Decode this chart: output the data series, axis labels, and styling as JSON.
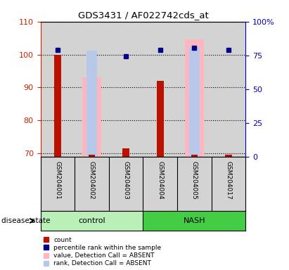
{
  "title": "GDS3431 / AF022742cds_at",
  "samples": [
    "GSM204001",
    "GSM204002",
    "GSM204003",
    "GSM204004",
    "GSM204005",
    "GSM204017"
  ],
  "ylim_left": [
    69,
    110
  ],
  "ylim_right": [
    0,
    100
  ],
  "yticks_left": [
    70,
    80,
    90,
    100,
    110
  ],
  "yticks_right": [
    0,
    25,
    50,
    75,
    100
  ],
  "left_axis_color": "#cc2200",
  "right_axis_color": "#0000bb",
  "count_values": [
    100.0,
    69.5,
    71.5,
    92.0,
    69.5,
    69.5
  ],
  "count_color": "#bb1100",
  "percentile_values": [
    101.5,
    null,
    99.5,
    101.3,
    102.0,
    101.5
  ],
  "percentile_color": "#000088",
  "value_absent_values": [
    null,
    93.0,
    null,
    null,
    104.5,
    null
  ],
  "value_absent_color": "#ffb6c1",
  "rank_absent_values": [
    null,
    101.2,
    null,
    null,
    102.2,
    null
  ],
  "rank_absent_color": "#b8c8e8",
  "bg_color": "#d3d3d3",
  "control_color": "#b8f0b8",
  "nash_color": "#44cc44",
  "dotted_line_color": "#000000",
  "legend_items": [
    {
      "label": "count",
      "color": "#bb1100"
    },
    {
      "label": "percentile rank within the sample",
      "color": "#000088"
    },
    {
      "label": "value, Detection Call = ABSENT",
      "color": "#ffb6c1"
    },
    {
      "label": "rank, Detection Call = ABSENT",
      "color": "#b8c8e8"
    }
  ]
}
